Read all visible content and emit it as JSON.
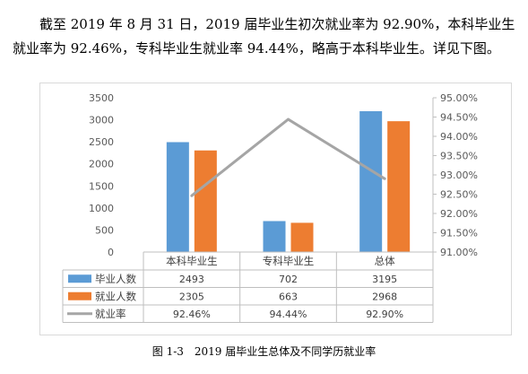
{
  "paragraph": {
    "line1": "截至 2019 年 8 月 31 日，2019 届毕业生初次就业率为 92.90%，本科毕业生",
    "line2": "就业率为 92.46%，专科毕业生就业率 94.44%，略高于本科毕业生。详见下图。"
  },
  "caption": "图 1-3　2019 届毕业生总体及不同学历就业率",
  "chart_data": {
    "type": "bar",
    "categories": [
      "本科毕业生",
      "专科毕业生",
      "总体"
    ],
    "series": [
      {
        "name": "毕业人数",
        "type": "bar",
        "axis": "left",
        "color": "#5b9bd5",
        "values": [
          2493,
          702,
          3195
        ],
        "labels": [
          "2493",
          "702",
          "3195"
        ]
      },
      {
        "name": "就业人数",
        "type": "bar",
        "axis": "left",
        "color": "#ed7d31",
        "values": [
          2305,
          663,
          2968
        ],
        "labels": [
          "2305",
          "663",
          "2968"
        ]
      },
      {
        "name": "就业率",
        "type": "line",
        "axis": "right",
        "color": "#a5a5a5",
        "values": [
          92.46,
          94.44,
          92.9
        ],
        "labels": [
          "92.46%",
          "94.44%",
          "92.90%"
        ]
      }
    ],
    "y_left": {
      "min": 0,
      "max": 3500,
      "ticks": [
        "0",
        "500",
        "1000",
        "1500",
        "2000",
        "2500",
        "3000",
        "3500"
      ]
    },
    "y_right": {
      "min": 91.0,
      "max": 95.0,
      "ticks": [
        "91.00%",
        "91.50%",
        "92.00%",
        "92.50%",
        "93.00%",
        "93.50%",
        "94.00%",
        "94.50%",
        "95.00%"
      ]
    },
    "data_table": true,
    "grid": false
  }
}
